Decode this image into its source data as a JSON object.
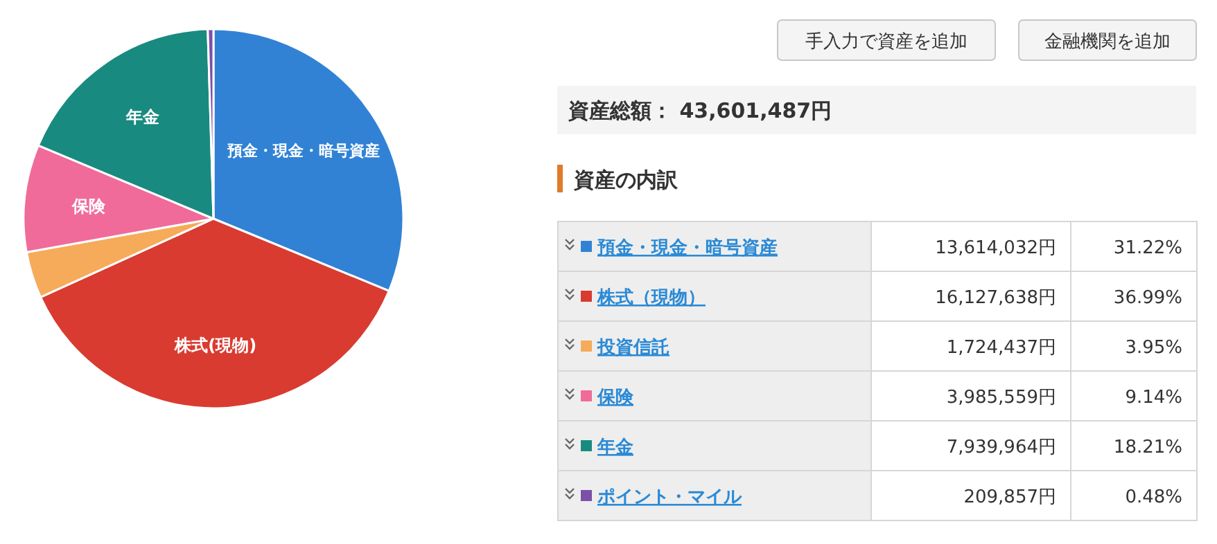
{
  "chart_data": {
    "type": "pie",
    "title": "資産の内訳",
    "subtitle": "資産総額： 43,601,487円",
    "categories": [
      "預金・現金・暗号資産",
      "株式（現物）",
      "投資信託",
      "保険",
      "年金",
      "ポイント・マイル"
    ],
    "values": [
      31.22,
      36.99,
      3.95,
      9.14,
      18.21,
      0.48
    ],
    "legend": "right",
    "colors": [
      "#3182d5",
      "#d93b30",
      "#f5ab5a",
      "#f06b9a",
      "#198a80",
      "#7c4fa8"
    ],
    "annotations": [
      "手入力で資産を追加",
      "金融機関を追加",
      {
        "text": "13,614,032円",
        "x": "預金・現金・暗号資産"
      },
      {
        "text": "16,127,638円",
        "x": "株式（現物）"
      },
      {
        "text": "1,724,437円",
        "x": "投資信託"
      },
      {
        "text": "3,985,559円",
        "x": "保険"
      },
      {
        "text": "7,939,964円",
        "x": "年金"
      },
      {
        "text": "209,857円",
        "x": "ポイント・マイル"
      },
      {
        "text": "31.22%",
        "x": "預金・現金・暗号資産"
      },
      {
        "text": "36.99%",
        "x": "株式（現物）"
      },
      {
        "text": "3.95%",
        "x": "投資信託"
      },
      {
        "text": "9.14%",
        "x": "保険"
      },
      {
        "text": "18.21%",
        "x": "年金"
      },
      {
        "text": "0.48%",
        "x": "ポイント・マイル"
      },
      {
        "text": "預金・現金・暗号資産",
        "x": "預金・現金・暗号資産"
      },
      {
        "text": "株式(現物)",
        "x": "株式（現物）"
      },
      {
        "text": "保険",
        "x": "保険"
      },
      {
        "text": "年金",
        "x": "年金"
      }
    ]
  }
}
